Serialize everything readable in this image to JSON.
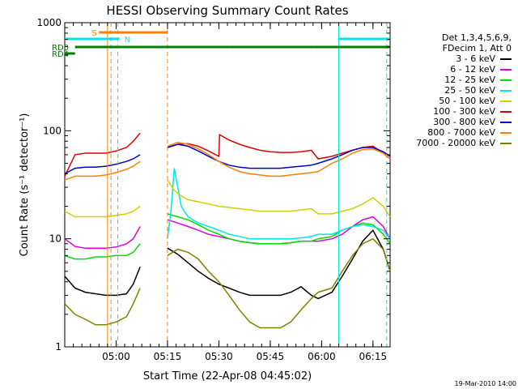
{
  "chart_data": {
    "type": "line",
    "title": "HESSI Observing Summary Count Rates",
    "xlabel": "Start Time (22-Apr-08 04:45:02)",
    "ylabel": "Count Rate (s⁻¹ detector⁻¹)",
    "yscale": "log",
    "ylim": [
      1,
      1000
    ],
    "xlim_minutes": [
      0,
      95
    ],
    "x_ticks": [
      {
        "t": 15,
        "label": "05:00"
      },
      {
        "t": 30,
        "label": "05:15"
      },
      {
        "t": 45,
        "label": "05:30"
      },
      {
        "t": 60,
        "label": "05:45"
      },
      {
        "t": 75,
        "label": "06:00"
      },
      {
        "t": 90,
        "label": "06:15"
      }
    ],
    "y_ticks": [
      {
        "v": 1,
        "label": "1"
      },
      {
        "v": 10,
        "label": "10"
      },
      {
        "v": 100,
        "label": "100"
      },
      {
        "v": 1000,
        "label": "1000"
      }
    ],
    "legend_header": [
      "Det 1,3,4,5,6,9,",
      "FDecim 1, Att 0"
    ],
    "series": [
      {
        "name": "3 - 6 keV",
        "color": "#000000",
        "x": [
          0,
          3,
          6,
          9,
          12,
          15,
          18,
          20,
          22,
          30,
          33,
          36,
          39,
          42,
          45,
          48,
          51,
          54,
          57,
          60,
          63,
          66,
          69,
          72,
          74,
          78,
          81,
          84,
          87,
          90,
          93,
          95
        ],
        "y": [
          4.5,
          3.5,
          3.2,
          3.1,
          3.0,
          3.0,
          3.1,
          3.8,
          5.5,
          8.2,
          7.2,
          6.0,
          5.0,
          4.3,
          3.8,
          3.5,
          3.2,
          3.0,
          3.0,
          3.0,
          3.0,
          3.2,
          3.6,
          3.0,
          2.8,
          3.2,
          4.5,
          6.5,
          9.5,
          12,
          8,
          5
        ]
      },
      {
        "name": "6 - 12 keV",
        "color": "#e000e0",
        "x": [
          0,
          3,
          6,
          9,
          12,
          15,
          18,
          20,
          22,
          30,
          33,
          36,
          39,
          42,
          45,
          48,
          51,
          54,
          57,
          60,
          63,
          66,
          69,
          72,
          74,
          78,
          81,
          84,
          87,
          90,
          93,
          95
        ],
        "y": [
          10,
          8.5,
          8.2,
          8.2,
          8.2,
          8.4,
          9,
          10,
          13,
          15,
          14,
          13,
          12,
          11,
          10.5,
          10,
          9.5,
          9.2,
          9,
          9,
          9,
          9.2,
          9.5,
          9.5,
          9.5,
          10,
          11,
          13,
          15,
          16,
          13,
          10
        ]
      },
      {
        "name": "12 - 25 keV",
        "color": "#00dd00",
        "x": [
          0,
          3,
          6,
          9,
          12,
          15,
          18,
          20,
          22,
          30,
          33,
          36,
          39,
          42,
          45,
          48,
          51,
          54,
          57,
          60,
          63,
          66,
          69,
          72,
          74,
          78,
          81,
          84,
          87,
          90,
          93,
          95
        ],
        "y": [
          7,
          6.5,
          6.5,
          6.8,
          6.8,
          7,
          7,
          7.5,
          9,
          17,
          16,
          15,
          13.5,
          12,
          11,
          10,
          9.5,
          9.2,
          9,
          9,
          9,
          9.2,
          9.5,
          9.5,
          10,
          10.5,
          12,
          13,
          14,
          13.5,
          11,
          9
        ]
      },
      {
        "name": "25 - 50 keV",
        "color": "#00e5e5",
        "x": [
          30,
          31,
          32,
          33,
          34,
          36,
          39,
          42,
          45,
          48,
          51,
          54,
          57,
          60,
          63,
          66,
          69,
          72,
          74,
          78,
          81,
          84,
          87,
          90,
          93,
          95
        ],
        "y": [
          10,
          18,
          45,
          30,
          20,
          16,
          14,
          13,
          12,
          11,
          10.5,
          10,
          10,
          10,
          10,
          10,
          10.2,
          10.5,
          11,
          11,
          12,
          13,
          13.5,
          13,
          12,
          10
        ]
      },
      {
        "name": "50 - 100 keV",
        "color": "#d0d000",
        "x": [
          0,
          3,
          6,
          9,
          12,
          15,
          18,
          20,
          22,
          30,
          32,
          34,
          36,
          39,
          42,
          45,
          48,
          51,
          54,
          57,
          60,
          63,
          66,
          69,
          72,
          74,
          78,
          81,
          84,
          87,
          90,
          93,
          95
        ],
        "y": [
          18,
          16,
          16,
          16,
          16,
          16.5,
          17,
          18,
          20,
          35,
          28,
          25,
          23,
          22,
          21,
          20,
          19.5,
          19,
          18.5,
          18,
          18,
          18,
          18,
          18.5,
          19,
          17,
          17,
          18,
          19,
          21,
          24,
          20,
          16
        ]
      },
      {
        "name": "100 - 300 keV",
        "color": "#e00000",
        "x": [
          0,
          3,
          6,
          9,
          12,
          15,
          18,
          20,
          22,
          30,
          33,
          36,
          39,
          42,
          45,
          45.2,
          48,
          51,
          54,
          57,
          60,
          63,
          66,
          69,
          72,
          74,
          78,
          81,
          84,
          87,
          90,
          93,
          95
        ],
        "y": [
          38,
          60,
          62,
          62,
          62,
          65,
          70,
          80,
          95,
          70,
          75,
          76,
          72,
          65,
          58,
          92,
          82,
          75,
          70,
          66,
          64,
          63,
          63,
          64,
          66,
          55,
          58,
          62,
          66,
          70,
          72,
          62,
          55
        ]
      },
      {
        "name": "300 - 800 keV",
        "color": "#0000c8",
        "x": [
          0,
          3,
          6,
          9,
          12,
          15,
          18,
          20,
          22,
          30,
          33,
          36,
          39,
          42,
          45,
          48,
          51,
          54,
          57,
          60,
          63,
          66,
          69,
          72,
          74,
          78,
          81,
          84,
          87,
          90,
          93,
          95
        ],
        "y": [
          40,
          45,
          46,
          46,
          47,
          49,
          52,
          55,
          60,
          70,
          75,
          72,
          65,
          58,
          52,
          48,
          46,
          45,
          45,
          45,
          45,
          46,
          47,
          48,
          50,
          55,
          60,
          66,
          70,
          70,
          64,
          58
        ]
      },
      {
        "name": "800 - 7000 keV",
        "color": "#ff8000",
        "x": [
          0,
          3,
          6,
          9,
          12,
          15,
          18,
          20,
          22,
          30,
          33,
          36,
          39,
          42,
          45,
          48,
          51,
          54,
          57,
          60,
          63,
          66,
          69,
          72,
          74,
          78,
          81,
          84,
          87,
          90,
          93,
          95
        ],
        "y": [
          35,
          38,
          38,
          38,
          39,
          41,
          44,
          47,
          52,
          72,
          78,
          75,
          68,
          60,
          52,
          46,
          42,
          40,
          39,
          38,
          38,
          39,
          40,
          41,
          42,
          50,
          55,
          62,
          67,
          68,
          62,
          55
        ]
      },
      {
        "name": "7000 - 20000 keV",
        "color": "#808000",
        "x": [
          0,
          3,
          6,
          9,
          12,
          15,
          18,
          20,
          22,
          30,
          33,
          36,
          39,
          42,
          45,
          48,
          51,
          54,
          57,
          60,
          63,
          66,
          69,
          72,
          74,
          78,
          81,
          84,
          87,
          90,
          93,
          95
        ],
        "y": [
          2.5,
          2.0,
          1.8,
          1.6,
          1.6,
          1.7,
          1.9,
          2.5,
          3.5,
          7,
          8,
          7.5,
          6.5,
          5,
          4,
          3,
          2.2,
          1.7,
          1.5,
          1.5,
          1.5,
          1.7,
          2.2,
          2.8,
          3.2,
          3.5,
          5,
          7,
          9,
          10,
          8,
          5
        ]
      }
    ],
    "status_bars": [
      {
        "label": "S",
        "color": "#ff8000",
        "segments": [
          [
            10,
            30
          ]
        ]
      },
      {
        "label": "N",
        "color": "#00e5e5",
        "segments": [
          [
            0,
            16
          ],
          [
            80,
            95
          ]
        ]
      },
      {
        "label": "RD0",
        "color": "#008000",
        "segments": [
          [
            3,
            30
          ],
          [
            30,
            48
          ],
          [
            48,
            73
          ],
          [
            73,
            95
          ]
        ]
      },
      {
        "label": "RD4",
        "color": "#008000",
        "segments": [
          [
            0,
            3
          ]
        ]
      }
    ],
    "markers": [
      {
        "t": 12.5,
        "color": "#ff8000",
        "style": "solid"
      },
      {
        "t": 13.5,
        "color": "#ff8000",
        "style": "dashed"
      },
      {
        "t": 15.5,
        "color": "#00e5e5",
        "style": "dashed"
      },
      {
        "t": 30.0,
        "color": "#ff8000",
        "style": "dashed"
      },
      {
        "t": 80.0,
        "color": "#00e5e5",
        "style": "solid"
      },
      {
        "t": 94.0,
        "color": "#00e5e5",
        "style": "dashed"
      }
    ],
    "grid": false,
    "legend_position": "right",
    "footer": "19-Mar-2010 14:00"
  }
}
